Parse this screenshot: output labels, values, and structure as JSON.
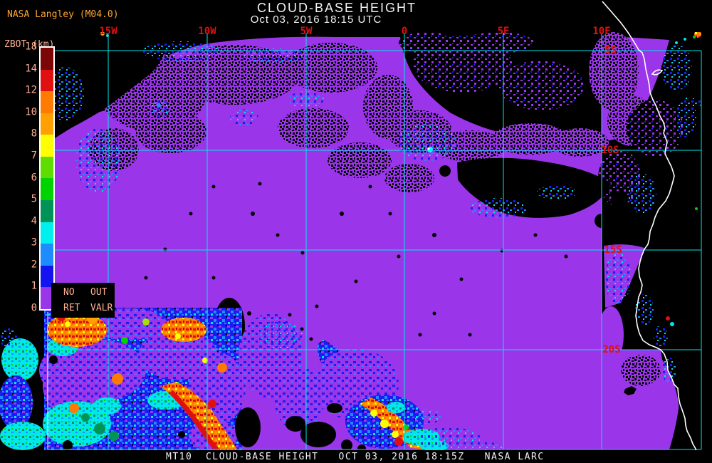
{
  "header": {
    "credit": "NASA Langley (M04.0)",
    "title": "CLOUD-BASE HEIGHT",
    "subtitle": "Oct 03, 2016 18:15 UTC"
  },
  "colorbar": {
    "title": "ZBOT (km)",
    "units": "km",
    "tick_labels": [
      "18",
      "14",
      "12",
      "10",
      "8",
      "7",
      "6",
      "5",
      "4",
      "3",
      "2",
      "1",
      "0"
    ],
    "segment_colors_top_to_bottom": [
      "#7C0606",
      "#E01010",
      "#FF7A00",
      "#FFA000",
      "#FFFF00",
      "#5FDC00",
      "#00D400",
      "#009358",
      "#00F0F0",
      "#1C8CFF",
      "#1414F0",
      "#9B35EA"
    ]
  },
  "legend_box": {
    "row1_col1": "NO",
    "row1_col2": "OUT",
    "row2_col1": "RET",
    "row2_col2": "VALR"
  },
  "map": {
    "lon_labels": [
      "15W",
      "10W",
      "5W",
      "0",
      "5E",
      "10E"
    ],
    "lat_labels": [
      "5S",
      "10S",
      "15S",
      "20S"
    ],
    "grid_color": "#00E6E6",
    "geo_label_color": "#E01010",
    "coastline_color": "#FFFFFF",
    "low_cloud_color": "#9B35EA",
    "no_retrieval_color": "#000000"
  },
  "footer": {
    "text": "MT10  CLOUD-BASE HEIGHT   OCT 03, 2016 18:15Z   NASA LARC"
  }
}
